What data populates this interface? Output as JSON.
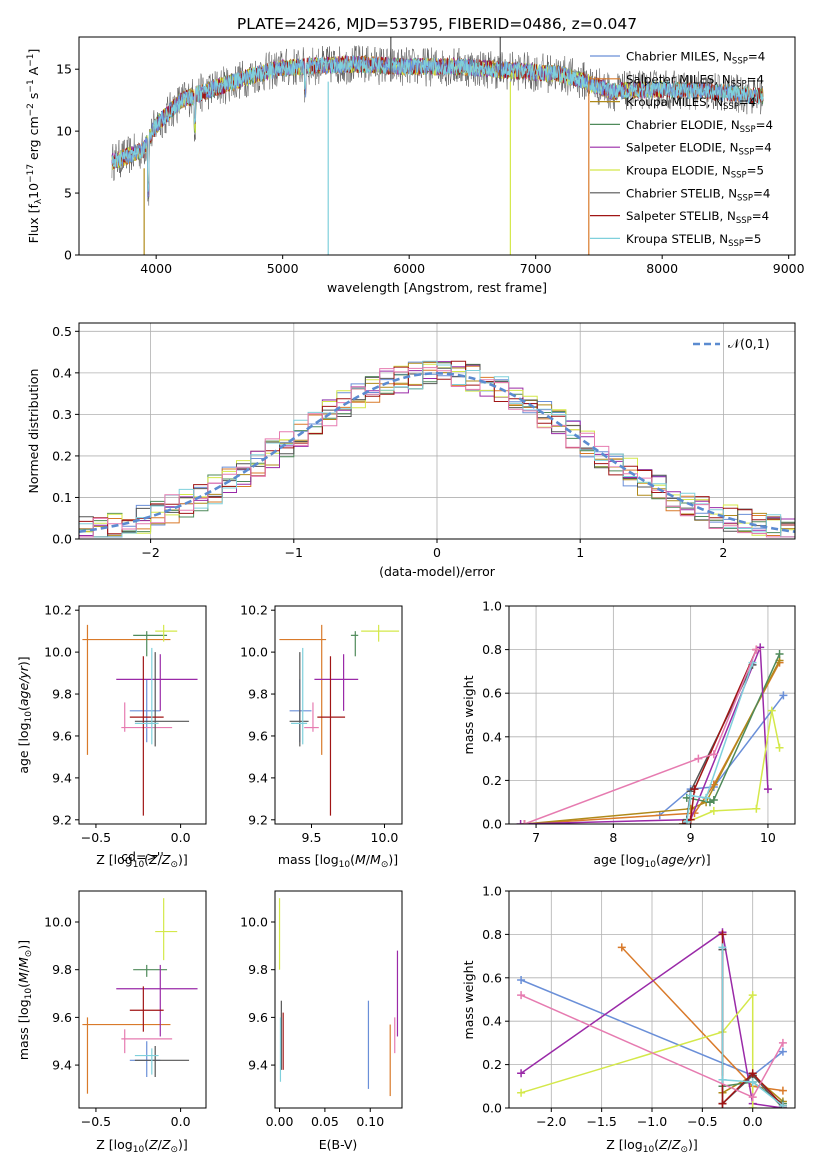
{
  "figure_title": "PLATE=2426, MJD=53795, FIBERID=0486, z=0.047",
  "colors": {
    "c1": "#6a8fd8",
    "c2": "#d97a2a",
    "c3": "#b08a1a",
    "c4": "#4f8a5a",
    "c5": "#9a2aa8",
    "c6": "#d4e84a",
    "c7": "#555555",
    "c8": "#a01515",
    "c9": "#7fd0dc",
    "gauss": "#5b8bd0",
    "pink": "#e67bb0"
  },
  "chart_data": [
    {
      "id": "spectrum",
      "type": "line",
      "xlabel": "wavelength [Angstrom, rest frame]",
      "ylabel": "Flux [f_λ 10⁻¹⁷ erg cm⁻² s⁻¹ A⁻¹]",
      "xlim": [
        3390,
        9050
      ],
      "ylim": [
        0,
        17.6
      ],
      "xticks": [
        4000,
        5000,
        6000,
        7000,
        8000,
        9000
      ],
      "yticks": [
        0,
        5,
        10,
        15
      ],
      "grid": false,
      "legend_position": "right",
      "series": [
        {
          "name": "Chabrier MILES, N_SSP=4",
          "color": "c1"
        },
        {
          "name": "Salpeter MILES, N_SSP=4",
          "color": "c2"
        },
        {
          "name": "Kroupa MILES, N_SSP=4",
          "color": "c3"
        },
        {
          "name": "Chabrier ELODIE, N_SSP=4",
          "color": "c4"
        },
        {
          "name": "Salpeter ELODIE, N_SSP=4",
          "color": "c5"
        },
        {
          "name": "Kroupa ELODIE, N_SSP=5",
          "color": "c6"
        },
        {
          "name": "Chabrier STELIB, N_SSP=4",
          "color": "c7"
        },
        {
          "name": "Salpeter STELIB, N_SSP=4",
          "color": "c8"
        },
        {
          "name": "Kroupa STELIB, N_SSP=5",
          "color": "c9"
        }
      ],
      "continuum": {
        "x": [
          3650,
          3900,
          4000,
          4200,
          4500,
          4800,
          5000,
          5300,
          5600,
          6000,
          6400,
          6800,
          7200,
          7400,
          7600,
          8000,
          8500,
          8800
        ],
        "y": [
          7.5,
          8.5,
          10.5,
          12.5,
          13.6,
          14.6,
          15.1,
          15.3,
          15.4,
          15.2,
          15.2,
          14.9,
          14.6,
          14.0,
          13.2,
          13.4,
          13.1,
          12.8
        ]
      }
    },
    {
      "id": "residuals",
      "type": "line",
      "xlabel": "(data-model)/error",
      "ylabel": "Normed distribution",
      "xlim": [
        -2.5,
        2.5
      ],
      "ylim": [
        0,
        0.52
      ],
      "xticks": [
        -2,
        -1,
        0,
        1,
        2
      ],
      "yticks": [
        0.0,
        0.1,
        0.2,
        0.3,
        0.4,
        0.5
      ],
      "grid": true,
      "legend_position": "top-right",
      "legend": "𝒩(0,1)",
      "bin_width": 0.1
    },
    {
      "id": "age_vs_Z",
      "type": "scatter",
      "xlabel": "Z [log₁₀(Z/Z⊙)]",
      "ylabel": "age [log₁₀(age/yr)]",
      "xlim": [
        -0.6,
        0.15
      ],
      "ylim": [
        9.18,
        10.22
      ],
      "xticks": [
        -0.5,
        0.0
      ],
      "yticks": [
        9.2,
        9.4,
        9.6,
        9.8,
        10.0,
        10.2
      ],
      "grid": false,
      "points": [
        {
          "c": "c1",
          "x": -0.2,
          "xe": [
            -0.3,
            -0.12
          ],
          "y": 9.72,
          "ye": [
            9.57,
            9.87
          ]
        },
        {
          "c": "c2",
          "x": -0.55,
          "xe": [
            -0.58,
            -0.06
          ],
          "y": 10.06,
          "ye": [
            9.51,
            10.13
          ]
        },
        {
          "c": "c4",
          "x": -0.2,
          "xe": [
            -0.28,
            -0.08
          ],
          "y": 10.08,
          "ye": [
            9.98,
            10.1
          ]
        },
        {
          "c": "c5",
          "x": -0.12,
          "xe": [
            -0.38,
            0.1
          ],
          "y": 9.87,
          "ye": [
            9.72,
            9.99
          ]
        },
        {
          "c": "pink",
          "x": -0.33,
          "xe": [
            -0.35,
            -0.05
          ],
          "y": 9.64,
          "ye": [
            9.62,
            9.76
          ]
        },
        {
          "c": "c6",
          "x": -0.1,
          "xe": [
            -0.15,
            -0.02
          ],
          "y": 10.1,
          "ye": [
            10.05,
            10.13
          ]
        },
        {
          "c": "c7",
          "x": -0.15,
          "xe": [
            -0.27,
            0.05
          ],
          "y": 9.67,
          "ye": [
            9.55,
            10.0
          ]
        },
        {
          "c": "c8",
          "x": -0.22,
          "xe": [
            -0.3,
            -0.1
          ],
          "y": 9.69,
          "ye": [
            9.22,
            9.98
          ]
        },
        {
          "c": "c9",
          "x": -0.17,
          "xe": [
            -0.27,
            -0.13
          ],
          "y": 9.66,
          "ye": [
            9.56,
            10.02
          ]
        }
      ]
    },
    {
      "id": "age_vs_mass",
      "type": "scatter",
      "xlabel": "mass [log₁₀(M/M⊙)]",
      "ylabel": "",
      "xlim": [
        9.25,
        10.12
      ],
      "ylim": [
        9.18,
        10.22
      ],
      "xticks": [
        9.5,
        10.0
      ],
      "yticks": [
        9.2,
        9.4,
        9.6,
        9.8,
        10.0,
        10.2
      ],
      "grid": false,
      "points": [
        {
          "c": "c1",
          "x": 9.42,
          "xe": [
            9.35,
            9.5
          ],
          "y": 9.72,
          "ye": [
            9.57,
            9.87
          ]
        },
        {
          "c": "c2",
          "x": 9.57,
          "xe": [
            9.28,
            9.6
          ],
          "y": 10.06,
          "ye": [
            9.51,
            10.13
          ]
        },
        {
          "c": "c4",
          "x": 9.8,
          "xe": [
            9.77,
            9.82
          ],
          "y": 10.08,
          "ye": [
            9.98,
            10.1
          ]
        },
        {
          "c": "c5",
          "x": 9.72,
          "xe": [
            9.52,
            9.82
          ],
          "y": 9.87,
          "ye": [
            9.72,
            9.99
          ]
        },
        {
          "c": "pink",
          "x": 9.51,
          "xe": [
            9.45,
            9.55
          ],
          "y": 9.64,
          "ye": [
            9.62,
            9.76
          ]
        },
        {
          "c": "c6",
          "x": 9.96,
          "xe": [
            9.84,
            10.1
          ],
          "y": 10.1,
          "ye": [
            10.05,
            10.13
          ]
        },
        {
          "c": "c7",
          "x": 9.42,
          "xe": [
            9.35,
            9.48
          ],
          "y": 9.67,
          "ye": [
            9.55,
            10.0
          ]
        },
        {
          "c": "c8",
          "x": 9.63,
          "xe": [
            9.54,
            9.73
          ],
          "y": 9.69,
          "ye": [
            9.22,
            9.98
          ]
        },
        {
          "c": "c9",
          "x": 9.44,
          "xe": [
            9.36,
            9.47
          ],
          "y": 9.66,
          "ye": [
            9.56,
            10.02
          ]
        }
      ]
    },
    {
      "id": "weight_vs_age",
      "type": "line",
      "xlabel": "age [log₁₀(age/yr)]",
      "ylabel": "mass weight",
      "xlim": [
        6.65,
        10.35
      ],
      "ylim": [
        0,
        1.0
      ],
      "xticks": [
        7,
        8,
        9,
        10
      ],
      "yticks": [
        0.0,
        0.2,
        0.4,
        0.6,
        0.8,
        1.0
      ],
      "grid": true,
      "series": [
        {
          "c": "c1",
          "x": [
            8.6,
            9.0,
            9.3,
            10.2
          ],
          "y": [
            0.04,
            0.16,
            0.17,
            0.59
          ]
        },
        {
          "c": "c2",
          "x": [
            6.85,
            9.05,
            9.3,
            10.15
          ],
          "y": [
            0.0,
            0.05,
            0.18,
            0.74
          ]
        },
        {
          "c": "c3",
          "x": [
            6.85,
            9.0,
            9.2,
            10.15
          ],
          "y": [
            0.0,
            0.07,
            0.1,
            0.75
          ]
        },
        {
          "c": "c4",
          "x": [
            8.95,
            9.25,
            9.3,
            10.15
          ],
          "y": [
            0.12,
            0.1,
            0.11,
            0.78
          ]
        },
        {
          "c": "c5",
          "x": [
            6.8,
            9.0,
            9.9,
            10.0
          ],
          "y": [
            0.0,
            0.02,
            0.81,
            0.16
          ]
        },
        {
          "c": "c6",
          "x": [
            8.9,
            9.3,
            9.85,
            10.05,
            10.15
          ],
          "y": [
            0.0,
            0.06,
            0.07,
            0.52,
            0.35
          ]
        },
        {
          "c": "c7",
          "x": [
            8.95,
            9.0,
            9.8
          ],
          "y": [
            0.02,
            0.15,
            0.73
          ]
        },
        {
          "c": "c8",
          "x": [
            8.9,
            9.0,
            9.05,
            9.85
          ],
          "y": [
            0.0,
            0.02,
            0.16,
            0.8
          ]
        },
        {
          "c": "c9",
          "x": [
            8.95,
            9.0,
            9.2,
            9.8
          ],
          "y": [
            0.01,
            0.13,
            0.12,
            0.74
          ]
        },
        {
          "c": "pink",
          "x": [
            6.85,
            9.1,
            9.3,
            9.85
          ],
          "y": [
            0.0,
            0.3,
            0.32,
            0.8
          ]
        }
      ]
    },
    {
      "id": "mass_vs_Z",
      "type": "scatter",
      "xlabel": "Z [log₁₀(Z/Z⊙)]",
      "ylabel": "mass [log₁₀(M/M⊙)]",
      "xlim": [
        -0.6,
        0.15
      ],
      "ylim": [
        9.22,
        10.13
      ],
      "xticks": [
        -0.5,
        0.0
      ],
      "yticks": [
        9.4,
        9.6,
        9.8,
        10.0
      ],
      "grid": false,
      "points": [
        {
          "c": "c1",
          "x": -0.2,
          "xe": [
            -0.3,
            -0.12
          ],
          "y": 9.42,
          "ye": [
            9.35,
            9.5
          ]
        },
        {
          "c": "c2",
          "x": -0.55,
          "xe": [
            -0.58,
            -0.06
          ],
          "y": 9.57,
          "ye": [
            9.28,
            9.6
          ]
        },
        {
          "c": "c4",
          "x": -0.2,
          "xe": [
            -0.28,
            -0.08
          ],
          "y": 9.8,
          "ye": [
            9.77,
            9.82
          ]
        },
        {
          "c": "c5",
          "x": -0.12,
          "xe": [
            -0.38,
            0.1
          ],
          "y": 9.72,
          "ye": [
            9.52,
            9.82
          ]
        },
        {
          "c": "pink",
          "x": -0.33,
          "xe": [
            -0.35,
            -0.05
          ],
          "y": 9.51,
          "ye": [
            9.45,
            9.55
          ]
        },
        {
          "c": "c6",
          "x": -0.1,
          "xe": [
            -0.15,
            -0.02
          ],
          "y": 9.96,
          "ye": [
            9.84,
            10.1
          ]
        },
        {
          "c": "c7",
          "x": -0.15,
          "xe": [
            -0.27,
            0.05
          ],
          "y": 9.42,
          "ye": [
            9.35,
            9.48
          ]
        },
        {
          "c": "c8",
          "x": -0.22,
          "xe": [
            -0.3,
            -0.1
          ],
          "y": 9.63,
          "ye": [
            9.54,
            9.73
          ]
        },
        {
          "c": "c9",
          "x": -0.17,
          "xe": [
            -0.27,
            -0.13
          ],
          "y": 9.44,
          "ye": [
            9.36,
            9.47
          ]
        }
      ]
    },
    {
      "id": "mass_vs_ebv",
      "type": "scatter",
      "xlabel": "E(B-V)",
      "ylabel": "",
      "xlim": [
        -0.005,
        0.135
      ],
      "ylim": [
        9.22,
        10.13
      ],
      "xticks": [
        0.0,
        0.05,
        0.1
      ],
      "yticks": [
        9.4,
        9.6,
        9.8,
        10.0
      ],
      "grid": false,
      "points": [
        {
          "c": "c1",
          "x": 0.098,
          "xe": [
            0.098,
            0.098
          ],
          "y": 9.42,
          "ye": [
            9.3,
            9.67
          ]
        },
        {
          "c": "c2",
          "x": 0.122,
          "xe": [
            0.122,
            0.122
          ],
          "y": 9.5,
          "ye": [
            9.27,
            9.57
          ]
        },
        {
          "c": "c5",
          "x": 0.13,
          "xe": [
            0.13,
            0.13
          ],
          "y": 9.72,
          "ye": [
            9.52,
            9.88
          ]
        },
        {
          "c": "pink",
          "x": 0.127,
          "xe": [
            0.127,
            0.127
          ],
          "y": 9.51,
          "ye": [
            9.45,
            9.6
          ]
        },
        {
          "c": "c6",
          "x": 0.0,
          "xe": [
            0.0,
            0.0
          ],
          "y": 9.9,
          "ye": [
            9.8,
            10.1
          ]
        },
        {
          "c": "c7",
          "x": 0.002,
          "xe": [
            0.002,
            0.002
          ],
          "y": 9.5,
          "ye": [
            9.38,
            9.67
          ]
        },
        {
          "c": "c8",
          "x": 0.004,
          "xe": [
            0.004,
            0.004
          ],
          "y": 9.5,
          "ye": [
            9.38,
            9.62
          ]
        },
        {
          "c": "c9",
          "x": 0.001,
          "xe": [
            0.001,
            0.001
          ],
          "y": 9.44,
          "ye": [
            9.33,
            9.6
          ]
        }
      ]
    },
    {
      "id": "weight_vs_Z",
      "type": "line",
      "xlabel": "Z [log₁₀(Z/Z⊙)]",
      "ylabel": "mass weight",
      "xlim": [
        -2.42,
        0.42
      ],
      "ylim": [
        0,
        1.0
      ],
      "xticks": [
        -2.0,
        -1.5,
        -1.0,
        -0.5,
        0.0
      ],
      "yticks": [
        0.0,
        0.2,
        0.4,
        0.6,
        0.8,
        1.0
      ],
      "grid": true,
      "series": [
        {
          "c": "c1",
          "x": [
            -2.3,
            0.0,
            0.3
          ],
          "y": [
            0.59,
            0.15,
            0.26
          ]
        },
        {
          "c": "c2",
          "x": [
            -1.3,
            0.0,
            0.3
          ],
          "y": [
            0.74,
            0.1,
            0.08
          ]
        },
        {
          "c": "c3",
          "x": [
            -0.3,
            0.0,
            0.3
          ],
          "y": [
            0.07,
            0.15,
            0.03
          ]
        },
        {
          "c": "c4",
          "x": [
            -0.3,
            0.0,
            0.3
          ],
          "y": [
            0.1,
            0.12,
            0.02
          ]
        },
        {
          "c": "c5",
          "x": [
            -2.3,
            -0.3,
            0.0,
            0.3
          ],
          "y": [
            0.16,
            0.81,
            0.02,
            0.0
          ]
        },
        {
          "c": "c6",
          "x": [
            -2.3,
            -0.3,
            0.0,
            0.0
          ],
          "y": [
            0.07,
            0.35,
            0.52,
            0.0
          ]
        },
        {
          "c": "c7",
          "x": [
            -0.3,
            -0.3,
            0.0,
            0.3
          ],
          "y": [
            0.73,
            0.02,
            0.15,
            0.0
          ]
        },
        {
          "c": "c8",
          "x": [
            -0.3,
            -0.3,
            0.0,
            0.3
          ],
          "y": [
            0.8,
            0.02,
            0.16,
            0.01
          ]
        },
        {
          "c": "c9",
          "x": [
            -0.3,
            -0.3,
            0.0,
            0.3
          ],
          "y": [
            0.74,
            0.13,
            0.12,
            0.01
          ]
        },
        {
          "c": "pink",
          "x": [
            -2.3,
            0.0,
            0.3
          ],
          "y": [
            0.52,
            0.05,
            0.3
          ]
        }
      ]
    }
  ]
}
